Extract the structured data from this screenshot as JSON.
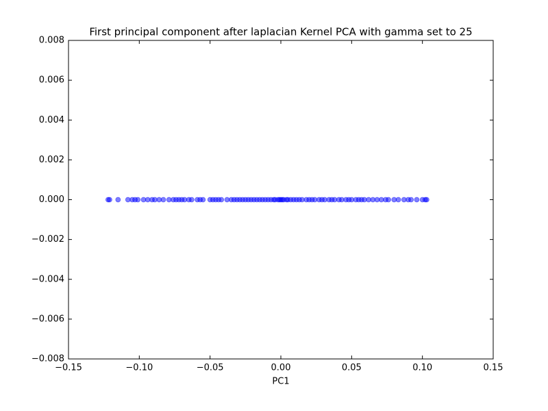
{
  "chart_data": {
    "type": "scatter",
    "title": "First principal component after laplacian Kernel PCA with gamma set to 25",
    "x_label": "PC1",
    "color": "#0000ff",
    "alpha": 0.5,
    "xlim": [
      -0.15,
      0.15
    ],
    "xticks": [
      {
        "value": -0.15,
        "label": "−0.15"
      },
      {
        "value": -0.1,
        "label": "−0.10"
      },
      {
        "value": -0.05,
        "label": "−0.05"
      },
      {
        "value": 0,
        "label": "0.00"
      },
      0.05,
      {
        "value": 0.1,
        "label": "0.10"
      },
      0.15
    ],
    "ylim": [
      -0.008,
      0.008
    ],
    "yticks": [
      {
        "value": -0.008,
        "label": "−0.008"
      },
      {
        "value": -0.006,
        "label": "−0.006"
      },
      {
        "value": -0.004,
        "label": "−0.004"
      },
      {
        "value": -0.002,
        "label": "−0.002"
      },
      {
        "value": 0,
        "label": "0.000"
      },
      0.002,
      0.004,
      0.006,
      0.008
    ],
    "x": [
      -0.122,
      -0.121,
      -0.115,
      -0.108,
      -0.105,
      -0.103,
      -0.101,
      -0.097,
      -0.094,
      -0.091,
      -0.089,
      -0.086,
      -0.083,
      -0.079,
      -0.076,
      -0.074,
      -0.072,
      -0.07,
      -0.068,
      -0.065,
      -0.063,
      -0.059,
      -0.057,
      -0.055,
      -0.05,
      -0.048,
      -0.046,
      -0.044,
      -0.042,
      -0.038,
      -0.035,
      -0.033,
      -0.031,
      -0.029,
      -0.027,
      -0.025,
      -0.023,
      -0.021,
      -0.019,
      -0.017,
      -0.015,
      -0.013,
      -0.011,
      -0.009,
      -0.007,
      -0.005,
      -0.004,
      -0.002,
      -0.001,
      0,
      0.001,
      0.002,
      0.004,
      0.005,
      0.007,
      0.009,
      0.011,
      0.013,
      0.015,
      0.018,
      0.02,
      0.022,
      0.024,
      0.027,
      0.029,
      0.031,
      0.034,
      0.036,
      0.038,
      0.041,
      0.043,
      0.046,
      0.048,
      0.05,
      0.053,
      0.055,
      0.057,
      0.059,
      0.062,
      0.065,
      0.068,
      0.071,
      0.074,
      0.076,
      0.08,
      0.083,
      0.087,
      0.09,
      0.092,
      0.096,
      0.1,
      0.102,
      0.103
    ],
    "values": [
      0,
      0,
      0,
      0,
      0,
      0,
      0,
      0,
      0,
      0,
      0,
      0,
      0,
      0,
      0,
      0,
      0,
      0,
      0,
      0,
      0,
      0,
      0,
      0,
      0,
      0,
      0,
      0,
      0,
      0,
      0,
      0,
      0,
      0,
      0,
      0,
      0,
      0,
      0,
      0,
      0,
      0,
      0,
      0,
      0,
      0,
      0,
      0,
      0,
      0,
      0,
      0,
      0,
      0,
      0,
      0,
      0,
      0,
      0,
      0,
      0,
      0,
      0,
      0,
      0,
      0,
      0,
      0,
      0,
      0,
      0,
      0,
      0,
      0,
      0,
      0,
      0,
      0,
      0,
      0,
      0,
      0,
      0,
      0,
      0,
      0,
      0,
      0,
      0,
      0,
      0,
      0,
      0
    ]
  }
}
